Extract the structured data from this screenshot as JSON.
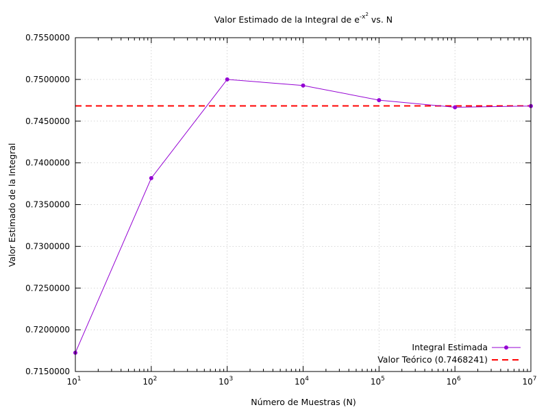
{
  "chart_data": {
    "type": "line",
    "title": "Valor Estimado de la Integral de e",
    "title_sup": "-x",
    "title_supsup": "2",
    "title_tail": " vs. N",
    "xlabel": "Número de Muestras (N)",
    "ylabel": "Valor Estimado de la Integral",
    "x_scale": "log",
    "xlim": [
      10,
      10000000
    ],
    "ylim": [
      0.715,
      0.755
    ],
    "x_ticks": [
      {
        "base": "10",
        "exp": "1",
        "value": 10
      },
      {
        "base": "10",
        "exp": "2",
        "value": 100
      },
      {
        "base": "10",
        "exp": "3",
        "value": 1000
      },
      {
        "base": "10",
        "exp": "4",
        "value": 10000
      },
      {
        "base": "10",
        "exp": "5",
        "value": 100000
      },
      {
        "base": "10",
        "exp": "6",
        "value": 1000000
      },
      {
        "base": "10",
        "exp": "7",
        "value": 10000000
      }
    ],
    "y_ticks": [
      {
        "label": "0.7150000",
        "value": 0.715
      },
      {
        "label": "0.7200000",
        "value": 0.72
      },
      {
        "label": "0.7250000",
        "value": 0.725
      },
      {
        "label": "0.7300000",
        "value": 0.73
      },
      {
        "label": "0.7350000",
        "value": 0.735
      },
      {
        "label": "0.7400000",
        "value": 0.74
      },
      {
        "label": "0.7450000",
        "value": 0.745
      },
      {
        "label": "0.7500000",
        "value": 0.75
      },
      {
        "label": "0.7550000",
        "value": 0.755
      }
    ],
    "grid": true,
    "legend_position": "bottom-right",
    "series": [
      {
        "name": "Integral Estimada",
        "style": "line-points",
        "color": "#9400d3",
        "x": [
          10,
          100,
          1000,
          10000,
          100000,
          1000000,
          10000000
        ],
        "y": [
          0.71725,
          0.73817,
          0.75,
          0.74927,
          0.74752,
          0.74666,
          0.74681
        ]
      },
      {
        "name": "Valor Teórico (0.7468241)",
        "style": "dashed",
        "color": "#ff0000",
        "value": 0.7468241
      }
    ]
  }
}
